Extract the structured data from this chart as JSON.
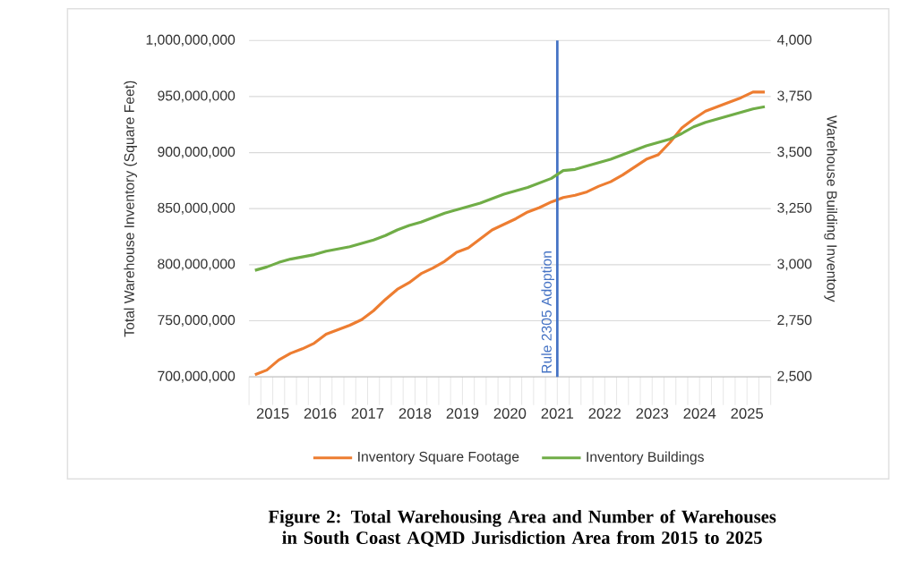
{
  "chart_data": {
    "type": "line",
    "title": "Figure 2: Total Warehousing Area and Number of Warehouses in South Coast AQMD Jurisdiction Area from 2015 to 2025",
    "ylabel": "Total Warehouse Inventory (Square Feet)",
    "y2label": "Warehouse Building Inventory",
    "x": [
      2015.125,
      2015.375,
      2015.625,
      2015.875,
      2016.125,
      2016.375,
      2016.625,
      2016.875,
      2017.125,
      2017.375,
      2017.625,
      2017.875,
      2018.125,
      2018.375,
      2018.625,
      2018.875,
      2019.125,
      2019.375,
      2019.625,
      2019.875,
      2020.125,
      2020.375,
      2020.625,
      2020.875,
      2021.125,
      2021.375,
      2021.625,
      2021.875,
      2022.125,
      2022.375,
      2022.625,
      2022.875,
      2023.125,
      2023.375,
      2023.625,
      2023.875,
      2024.125,
      2024.375,
      2024.625,
      2024.875,
      2025.125,
      2025.375,
      2025.625,
      2025.875
    ],
    "xlim": [
      2015,
      2026
    ],
    "xticks": [
      {
        "value": 2015.5,
        "label": "2015"
      },
      {
        "value": 2016.5,
        "label": "2016"
      },
      {
        "value": 2017.5,
        "label": "2017"
      },
      {
        "value": 2018.5,
        "label": "2018"
      },
      {
        "value": 2019.5,
        "label": "2019"
      },
      {
        "value": 2020.5,
        "label": "2020"
      },
      {
        "value": 2021.5,
        "label": "2021"
      },
      {
        "value": 2022.5,
        "label": "2022"
      },
      {
        "value": 2023.5,
        "label": "2023"
      },
      {
        "value": 2024.5,
        "label": "2024"
      },
      {
        "value": 2025.5,
        "label": "2025"
      }
    ],
    "ylim": [
      700000000,
      1000000000
    ],
    "yticks": [
      {
        "value": 700000000,
        "label": "700,000,000"
      },
      {
        "value": 750000000,
        "label": "750,000,000"
      },
      {
        "value": 800000000,
        "label": "800,000,000"
      },
      {
        "value": 850000000,
        "label": "850,000,000"
      },
      {
        "value": 900000000,
        "label": "900,000,000"
      },
      {
        "value": 950000000,
        "label": "950,000,000"
      },
      {
        "value": 1000000000,
        "label": "1,000,000,000"
      }
    ],
    "y2lim": [
      2500,
      4000
    ],
    "y2ticks": [
      {
        "value": 2500,
        "label": "2,500"
      },
      {
        "value": 2750,
        "label": "2,750"
      },
      {
        "value": 3000,
        "label": "3,000"
      },
      {
        "value": 3250,
        "label": "3,250"
      },
      {
        "value": 3500,
        "label": "3,500"
      },
      {
        "value": 3750,
        "label": "3,750"
      },
      {
        "value": 4000,
        "label": "4,000"
      }
    ],
    "series": [
      {
        "name": "Inventory Square Footage",
        "color": "#ed7d31",
        "values": [
          702000000,
          706000000,
          715000000,
          721000000,
          725000000,
          730000000,
          738000000,
          742000000,
          746000000,
          751000000,
          759000000,
          769000000,
          778000000,
          784000000,
          792000000,
          797000000,
          803000000,
          811000000,
          815000000,
          823000000,
          831000000,
          836000000,
          841000000,
          847000000,
          851000000,
          856000000,
          860000000,
          862000000,
          865000000,
          870000000,
          874000000,
          880000000,
          887000000,
          894000000,
          898000000,
          909000000,
          922000000,
          930000000,
          937000000,
          941000000,
          945000000,
          949000000,
          954000000,
          954000000
        ]
      },
      {
        "name": "Inventory Buildings",
        "color": "#70ad47",
        "axis": "y2",
        "values": [
          2975,
          2990,
          3010,
          3025,
          3035,
          3045,
          3060,
          3070,
          3080,
          3095,
          3110,
          3130,
          3155,
          3175,
          3190,
          3210,
          3230,
          3245,
          3260,
          3275,
          3295,
          3315,
          3330,
          3345,
          3365,
          3385,
          3420,
          3425,
          3440,
          3455,
          3470,
          3490,
          3510,
          3530,
          3545,
          3560,
          3585,
          3615,
          3635,
          3650,
          3665,
          3680,
          3695,
          3705
        ]
      }
    ],
    "ref_lines": [
      {
        "axis": "x",
        "value": 2021.5,
        "label": "Rule 2305 Adoption",
        "color": "#4472c4"
      }
    ],
    "grid": "y",
    "legend": "bottom",
    "marker": "none",
    "line_style": "solid"
  }
}
